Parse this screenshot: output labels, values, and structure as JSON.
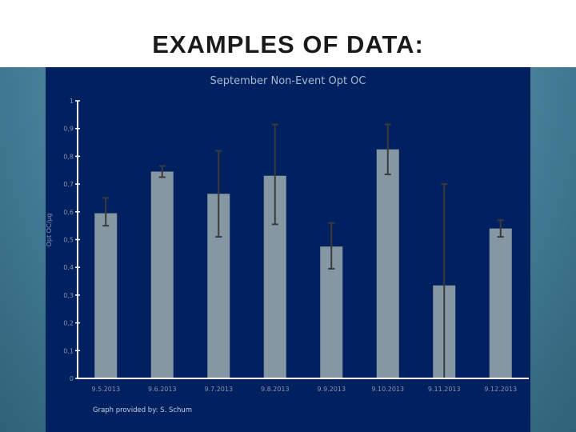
{
  "slide": {
    "title": "EXAMPLES OF DATA:",
    "credit": "Graph provided by: S. Schum"
  },
  "chart_data": {
    "type": "bar",
    "title": "September Non-Event Opt OC",
    "xlabel": "",
    "ylabel": "Opt OC/µg",
    "ylim": [
      0,
      1
    ],
    "yticks": [
      "0",
      "0,1",
      "0,2",
      "0,3",
      "0,4",
      "0,5",
      "0,6",
      "0,7",
      "0,8",
      "0,9",
      "1"
    ],
    "categories": [
      "9.5.2013",
      "9.6.2013",
      "9.7.2013",
      "9.8.2013",
      "9.9.2013",
      "9.10.2013",
      "9.11.2013",
      "9.12.2013"
    ],
    "values": [
      0.595,
      0.745,
      0.665,
      0.73,
      0.475,
      0.825,
      0.335,
      0.54
    ],
    "error_bars": {
      "low": [
        0.55,
        0.725,
        0.51,
        0.555,
        0.395,
        0.735,
        0.0,
        0.51
      ],
      "high": [
        0.65,
        0.765,
        0.82,
        0.915,
        0.56,
        0.915,
        0.7,
        0.57
      ]
    },
    "grid": false,
    "colors": {
      "bar": "#8497a3",
      "error": "#3a3a3a",
      "axis": "#ffffff",
      "tick_label": "#8a94a8",
      "background": "#002060"
    }
  }
}
